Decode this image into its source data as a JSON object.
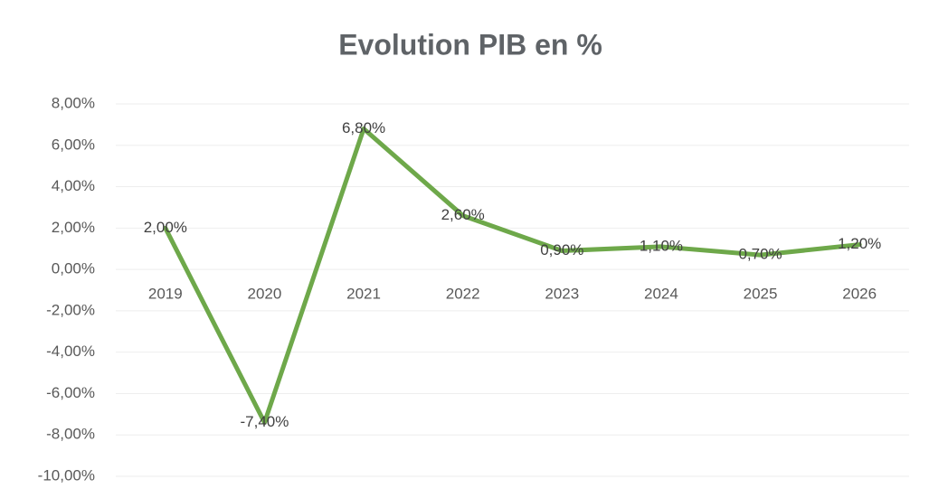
{
  "chart_data": {
    "type": "line",
    "title": "Evolution PIB en %",
    "categories": [
      "2019",
      "2020",
      "2021",
      "2022",
      "2023",
      "2024",
      "2025",
      "2026"
    ],
    "series": [
      {
        "name": "PIB",
        "color": "#6ea84a",
        "values": [
          2.0,
          -7.4,
          6.8,
          2.6,
          0.9,
          1.1,
          0.7,
          1.2
        ],
        "value_labels": [
          "2,00%",
          "-7,40%",
          "6,80%",
          "2,60%",
          "0,90%",
          "1,10%",
          "0,70%",
          "1,20%"
        ]
      }
    ],
    "ylim": [
      -10,
      8
    ],
    "yticks": [
      {
        "value": -10,
        "label": "-10,00%"
      },
      {
        "value": -8,
        "label": "-8,00%"
      },
      {
        "value": -6,
        "label": "-6,00%"
      },
      {
        "value": -4,
        "label": "-4,00%"
      },
      {
        "value": -2,
        "label": "-2,00%"
      },
      {
        "value": 0,
        "label": "0,00%"
      },
      {
        "value": 2,
        "label": "2,00%"
      },
      {
        "value": 4,
        "label": "4,00%"
      },
      {
        "value": 6,
        "label": "6,00%"
      },
      {
        "value": 8,
        "label": "8,00%"
      }
    ],
    "grid": true
  }
}
